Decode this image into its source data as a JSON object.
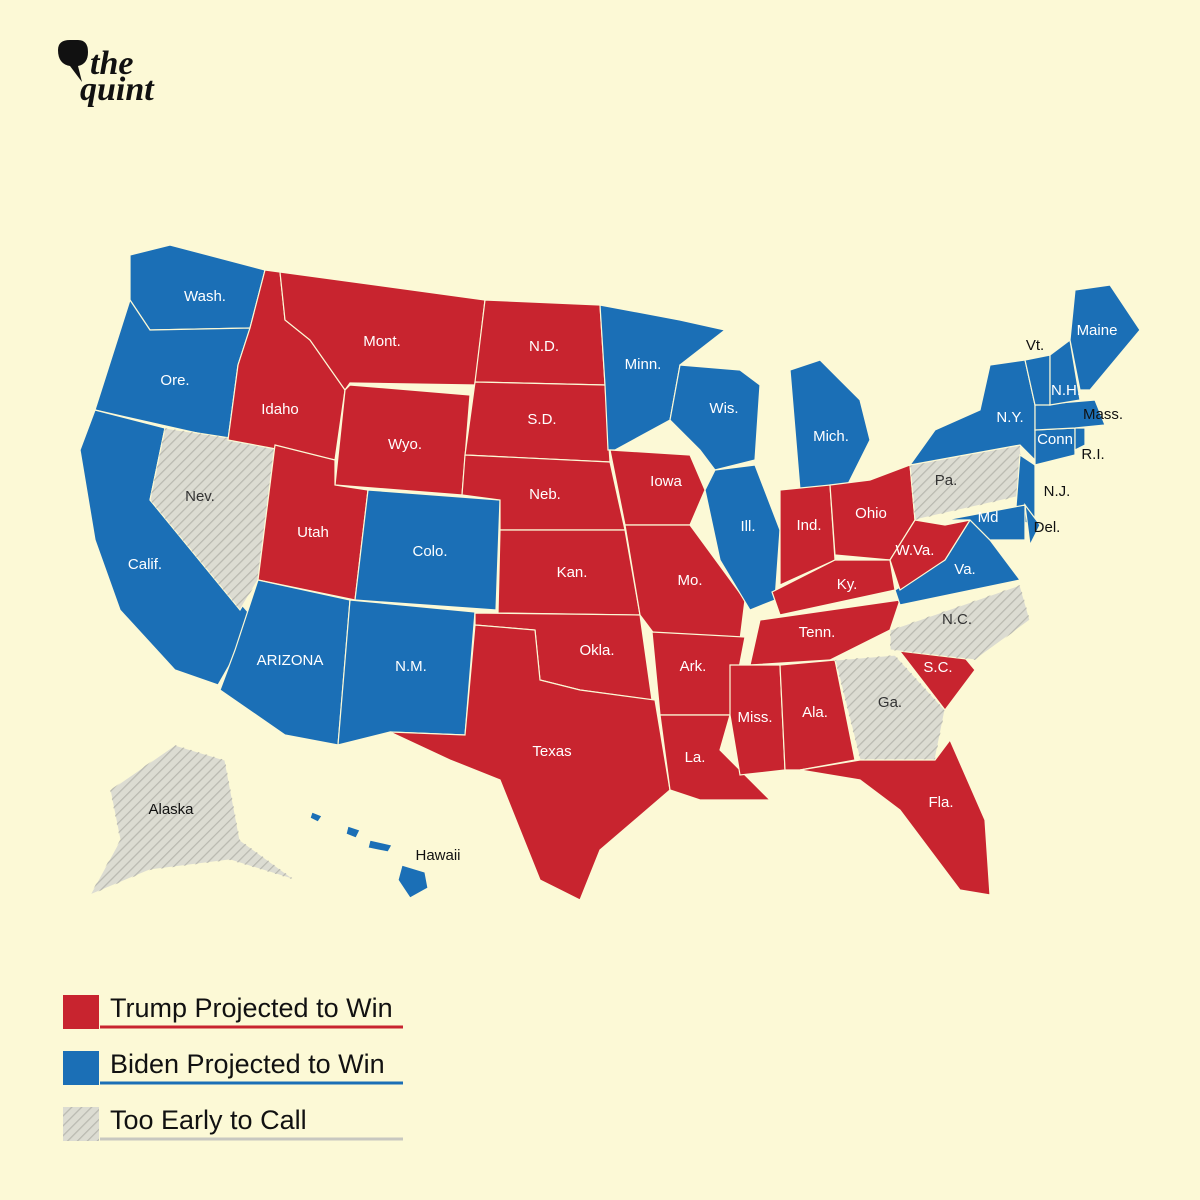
{
  "logo": {
    "line1": "the",
    "line2": "quint"
  },
  "states": [
    {
      "label": "Wash.",
      "color": "#1b6fb6"
    },
    {
      "label": "Ore.",
      "color": "#1b6fb6"
    },
    {
      "label": "Calif.",
      "color": "#1b6fb6"
    },
    {
      "label": "Nev.",
      "color": "#dcdcd2",
      "hatched": true
    },
    {
      "label": "Idaho",
      "color": "#c8242f"
    },
    {
      "label": "Mont.",
      "color": "#c8242f"
    },
    {
      "label": "Wyo.",
      "color": "#c8242f"
    },
    {
      "label": "Utah",
      "color": "#c8242f"
    },
    {
      "label": "Colo.",
      "color": "#1b6fb6"
    },
    {
      "label": "ARIZONA",
      "color": "#1b6fb6"
    },
    {
      "label": "N.M.",
      "color": "#1b6fb6"
    },
    {
      "label": "N.D.",
      "color": "#c8242f"
    },
    {
      "label": "S.D.",
      "color": "#c8242f"
    },
    {
      "label": "Neb.",
      "color": "#c8242f"
    },
    {
      "label": "Kan.",
      "color": "#c8242f"
    },
    {
      "label": "Okla.",
      "color": "#c8242f"
    },
    {
      "label": "Texas",
      "color": "#c8242f"
    },
    {
      "label": "Minn.",
      "color": "#1b6fb6"
    },
    {
      "label": "Iowa",
      "color": "#c8242f"
    },
    {
      "label": "Mo.",
      "color": "#c8242f"
    },
    {
      "label": "Ark.",
      "color": "#c8242f"
    },
    {
      "label": "La.",
      "color": "#c8242f"
    },
    {
      "label": "Wis.",
      "color": "#1b6fb6"
    },
    {
      "label": "Ill.",
      "color": "#1b6fb6"
    },
    {
      "label": "Mich.",
      "color": "#1b6fb6"
    },
    {
      "label": "Ind.",
      "color": "#c8242f"
    },
    {
      "label": "Ohio",
      "color": "#c8242f"
    },
    {
      "label": "Ky.",
      "color": "#c8242f"
    },
    {
      "label": "Tenn.",
      "color": "#c8242f"
    },
    {
      "label": "Miss.",
      "color": "#c8242f"
    },
    {
      "label": "Ala.",
      "color": "#c8242f"
    },
    {
      "label": "Ga.",
      "color": "#dcdcd2",
      "hatched": true
    },
    {
      "label": "Fla.",
      "color": "#c8242f"
    },
    {
      "label": "S.C.",
      "color": "#c8242f"
    },
    {
      "label": "N.C.",
      "color": "#dcdcd2",
      "hatched": true
    },
    {
      "label": "Va.",
      "color": "#1b6fb6"
    },
    {
      "label": "W.Va.",
      "color": "#c8242f"
    },
    {
      "label": "Pa.",
      "color": "#dcdcd2",
      "hatched": true
    },
    {
      "label": "N.Y.",
      "color": "#1b6fb6"
    },
    {
      "label": "N.J.",
      "color": "#1b6fb6"
    },
    {
      "label": "Md",
      "color": "#1b6fb6"
    },
    {
      "label": "Del.",
      "color": "#1b6fb6"
    },
    {
      "label": "Conn",
      "color": "#1b6fb6"
    },
    {
      "label": "R.I.",
      "color": "#1b6fb6"
    },
    {
      "label": "Mass.",
      "color": "#1b6fb6"
    },
    {
      "label": "Vt.",
      "color": "#1b6fb6"
    },
    {
      "label": "N.H.",
      "color": "#1b6fb6"
    },
    {
      "label": "Maine",
      "color": "#1b6fb6"
    },
    {
      "label": "Alaska",
      "color": "#dcdcd2",
      "hatched": true
    },
    {
      "label": "Hawaii",
      "color": "#1b6fb6"
    }
  ],
  "legend": [
    {
      "label": "Trump Projected to Win",
      "color": "#c8242f"
    },
    {
      "label": "Biden Projected to Win",
      "color": "#1b6fb6"
    },
    {
      "label": "Too Early to Call",
      "color": "#dcdcd2",
      "hatched": true
    }
  ]
}
